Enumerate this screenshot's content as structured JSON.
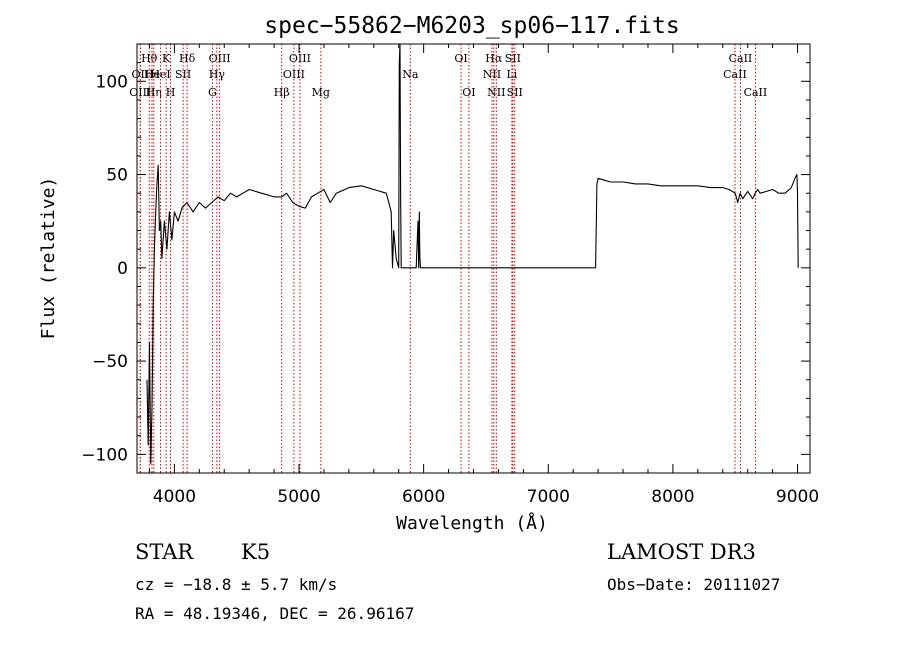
{
  "chart_data": {
    "type": "line",
    "title": "spec−55862−M6203_sp06−117.fits",
    "xlabel": "Wavelength (Å)",
    "ylabel": "Flux (relative)",
    "xlim": [
      3700,
      9100
    ],
    "ylim": [
      -110,
      120
    ],
    "x_ticks": [
      4000,
      5000,
      6000,
      7000,
      8000,
      9000
    ],
    "x_tick_labels": [
      "4000",
      "5000",
      "6000",
      "7000",
      "8000",
      "9000"
    ],
    "y_ticks": [
      -100,
      -50,
      0,
      50,
      100
    ],
    "y_tick_labels": [
      "−100",
      "−50",
      "0",
      "50",
      "100"
    ],
    "series": [
      {
        "name": "flux",
        "x": [
          3780,
          3790,
          3800,
          3810,
          3820,
          3830,
          3840,
          3850,
          3860,
          3870,
          3880,
          3890,
          3900,
          3920,
          3940,
          3960,
          3980,
          4000,
          4030,
          4060,
          4100,
          4150,
          4200,
          4250,
          4300,
          4350,
          4400,
          4450,
          4500,
          4550,
          4600,
          4700,
          4800,
          4860,
          4900,
          4950,
          5000,
          5050,
          5100,
          5150,
          5200,
          5250,
          5300,
          5400,
          5500,
          5600,
          5700,
          5740,
          5750,
          5760,
          5780,
          5800,
          5805,
          5810,
          5815,
          5820,
          5850,
          5900,
          5940,
          5955,
          5960,
          5965,
          5970,
          5975,
          6000,
          6500,
          7000,
          7200,
          7260,
          7300,
          7350,
          7380,
          7390,
          7400,
          7450,
          7500,
          7600,
          7700,
          7800,
          7900,
          8000,
          8100,
          8200,
          8300,
          8400,
          8450,
          8500,
          8520,
          8540,
          8560,
          8600,
          8640,
          8660,
          8680,
          8700,
          8750,
          8800,
          8850,
          8900,
          8950,
          8980,
          8995,
          9000,
          9005
        ],
        "y": [
          -60,
          -95,
          -40,
          -105,
          -75,
          -20,
          10,
          30,
          45,
          55,
          20,
          25,
          5,
          25,
          10,
          30,
          15,
          30,
          25,
          32,
          35,
          30,
          35,
          32,
          35,
          38,
          36,
          40,
          38,
          40,
          42,
          40,
          38,
          38,
          40,
          35,
          33,
          32,
          38,
          40,
          42,
          35,
          40,
          43,
          44,
          42,
          40,
          30,
          0,
          20,
          5,
          0,
          110,
          120,
          40,
          0,
          0,
          0,
          0,
          25,
          0,
          30,
          5,
          0,
          0,
          0,
          0,
          0,
          0,
          0,
          0,
          0,
          45,
          48,
          47,
          46,
          46,
          45,
          45,
          44,
          44,
          44,
          44,
          43,
          43,
          42,
          40,
          35,
          40,
          37,
          41,
          37,
          40,
          42,
          40,
          41,
          42,
          40,
          40,
          43,
          48,
          50,
          40,
          0
        ]
      }
    ],
    "lines": [
      {
        "label": "Hθ",
        "wavelength": 3798,
        "row": 1
      },
      {
        "label": "OII",
        "wavelength": 3727,
        "row": 2
      },
      {
        "label": "OIII",
        "wavelength": 3726,
        "row": 3
      },
      {
        "label": "He",
        "wavelength": 3820,
        "row": 2
      },
      {
        "label": "Hη",
        "wavelength": 3835,
        "row": 3
      },
      {
        "label": "K",
        "wavelength": 3934,
        "row": 1
      },
      {
        "label": "HeI",
        "wavelength": 3889,
        "row": 2
      },
      {
        "label": "H",
        "wavelength": 3969,
        "row": 3
      },
      {
        "label": "Hδ",
        "wavelength": 4102,
        "row": 1
      },
      {
        "label": "SII",
        "wavelength": 4070,
        "row": 2
      },
      {
        "label": "OIII",
        "wavelength": 4363,
        "row": 1
      },
      {
        "label": "Hγ",
        "wavelength": 4341,
        "row": 2
      },
      {
        "label": "G",
        "wavelength": 4305,
        "row": 3
      },
      {
        "label": "OIII",
        "wavelength": 5007,
        "row": 1
      },
      {
        "label": "OIII",
        "wavelength": 4959,
        "row": 2
      },
      {
        "label": "Hβ",
        "wavelength": 4861,
        "row": 3
      },
      {
        "label": "Mg",
        "wavelength": 5175,
        "row": 3
      },
      {
        "label": "Na",
        "wavelength": 5893,
        "row": 2
      },
      {
        "label": "OI",
        "wavelength": 6300,
        "row": 1
      },
      {
        "label": "OI",
        "wavelength": 6363,
        "row": 3
      },
      {
        "label": "Hα",
        "wavelength": 6563,
        "row": 1
      },
      {
        "label": "NII",
        "wavelength": 6548,
        "row": 2
      },
      {
        "label": "NII",
        "wavelength": 6583,
        "row": 3
      },
      {
        "label": "SII",
        "wavelength": 6716,
        "row": 1
      },
      {
        "label": "Li",
        "wavelength": 6708,
        "row": 2
      },
      {
        "label": "SII",
        "wavelength": 6731,
        "row": 3
      },
      {
        "label": "CaII",
        "wavelength": 8542,
        "row": 1
      },
      {
        "label": "CaII",
        "wavelength": 8498,
        "row": 2
      },
      {
        "label": "CaII",
        "wavelength": 8662,
        "row": 3
      }
    ]
  },
  "info": {
    "class": "STAR",
    "subclass": "K5",
    "survey": "LAMOST DR3",
    "cz": "cz = −18.8 ± 5.7 km/s",
    "obs_date": "Obs−Date: 20111027",
    "radec": "RA =  48.19346, DEC =  26.96167"
  },
  "colors": {
    "axis": "#000000",
    "spectrum": "#000000",
    "line_marker": "#cc0000"
  }
}
